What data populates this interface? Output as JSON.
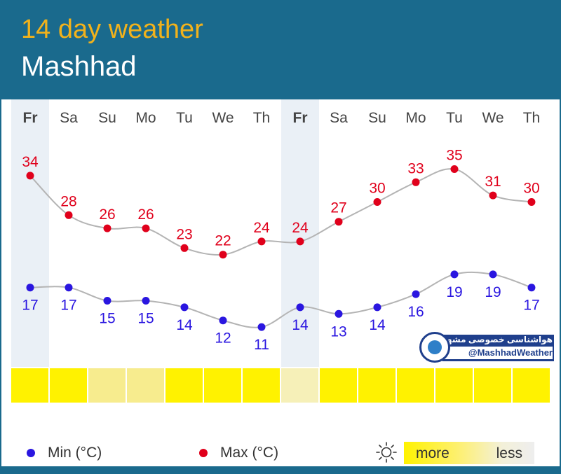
{
  "header": {
    "title": "14 day weather",
    "city": "Mashhad"
  },
  "chart_data": {
    "type": "line",
    "categories": [
      "Fr",
      "Sa",
      "Su",
      "Mo",
      "Tu",
      "We",
      "Th",
      "Fr",
      "Sa",
      "Su",
      "Mo",
      "Tu",
      "We",
      "Th"
    ],
    "weekend_days": [
      0,
      7
    ],
    "series": [
      {
        "name": "Max (°C)",
        "color": "#e0001b",
        "values": [
          34,
          28,
          26,
          26,
          23,
          22,
          24,
          24,
          27,
          30,
          33,
          35,
          31,
          30
        ]
      },
      {
        "name": "Min (°C)",
        "color": "#2a16e0",
        "values": [
          17,
          17,
          15,
          15,
          14,
          12,
          11,
          14,
          13,
          14,
          16,
          19,
          19,
          17
        ]
      }
    ],
    "sunshine": {
      "levels": [
        1,
        1,
        0.45,
        0.45,
        1,
        1,
        1,
        0.3,
        1,
        1,
        1,
        1,
        1,
        1
      ]
    },
    "legend": {
      "min_label": "Min (°C)",
      "max_label": "Max (°C)",
      "more": "more",
      "less": "less"
    }
  },
  "watermark": {
    "persian": "هواشناسی خصوصی مشهد",
    "handle": "@MashhadWeather"
  },
  "icons": {
    "sun": "sun-icon"
  }
}
